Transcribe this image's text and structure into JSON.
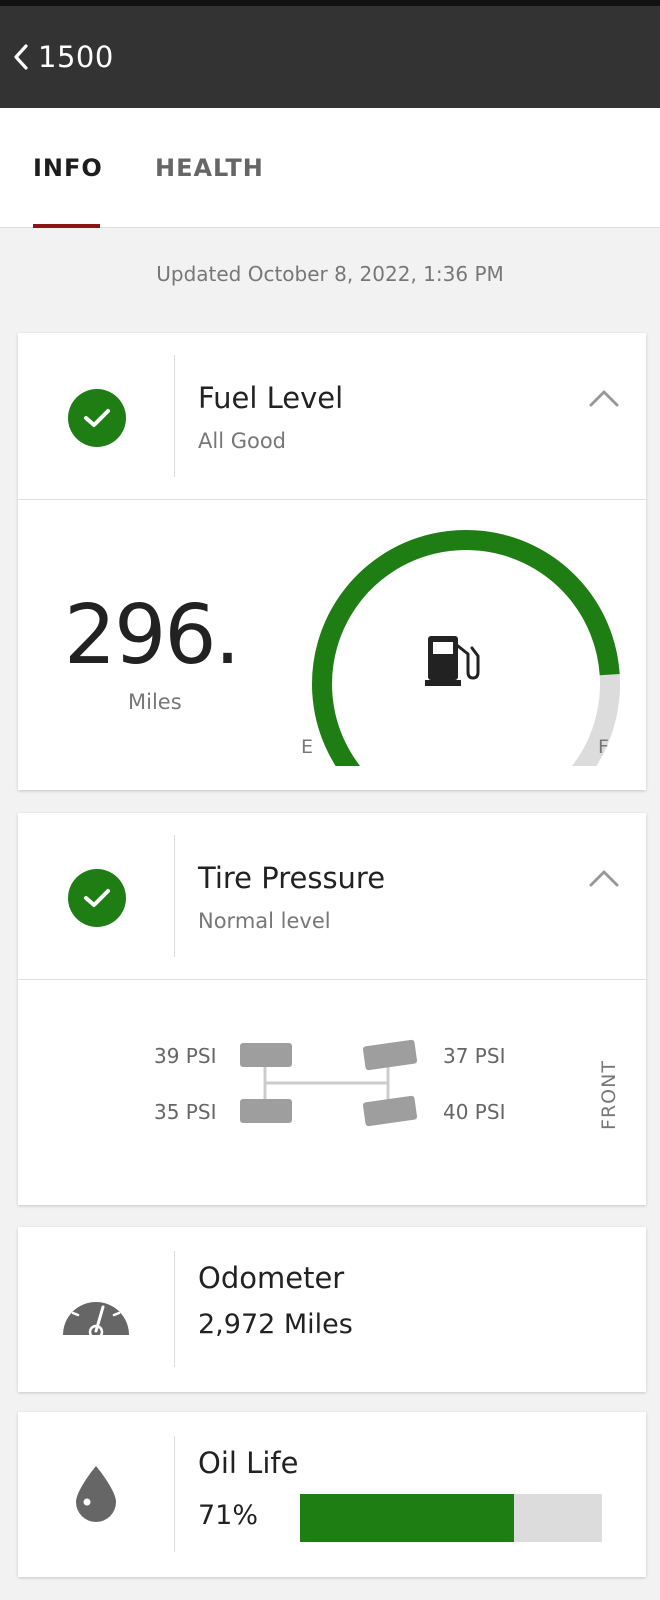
{
  "header": {
    "title": "1500"
  },
  "tabs": [
    {
      "label": "INFO",
      "active": true
    },
    {
      "label": "HEALTH",
      "active": false
    }
  ],
  "updated": "Updated October 8, 2022, 1:36 PM",
  "fuel": {
    "title": "Fuel Level",
    "status": "All Good",
    "miles_value": "296.",
    "miles_label": "Miles",
    "gauge_level": 0.78,
    "gauge_empty_label": "E",
    "gauge_full_label": "F",
    "icon": "fuel-pump-icon"
  },
  "tires": {
    "title": "Tire Pressure",
    "status": "Normal level",
    "rear_left": "39 PSI",
    "rear_right": "35 PSI",
    "front_left": "37 PSI",
    "front_right": "40 PSI",
    "front_label": "FRONT"
  },
  "odometer": {
    "title": "Odometer",
    "value": "2,972 Miles",
    "icon": "speedometer-icon"
  },
  "oil": {
    "title": "Oil Life",
    "value": "71%",
    "level": 0.71,
    "icon": "oil-drop-icon"
  },
  "colors": {
    "accent_green": "#1e7d13",
    "tab_indicator": "#8b1414",
    "header_bg": "#333333",
    "gauge_track": "#dcdcdc"
  }
}
